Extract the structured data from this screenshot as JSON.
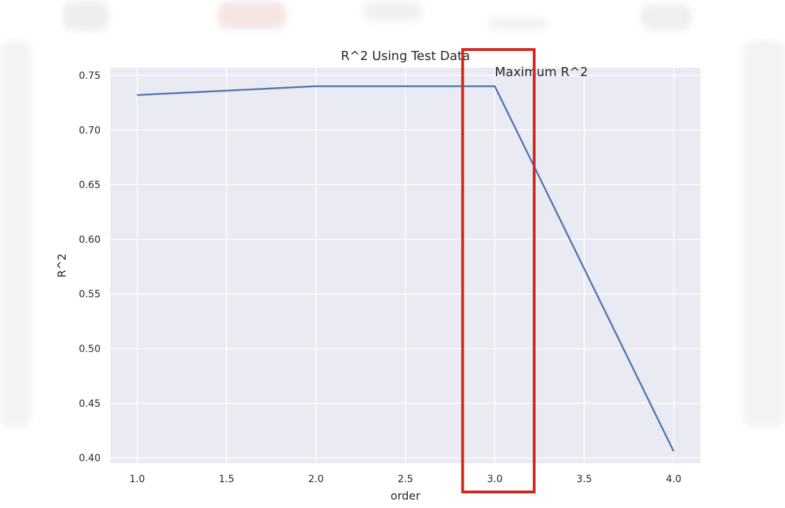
{
  "chart_data": {
    "type": "line",
    "title": "R^2 Using Test Data",
    "xlabel": "order",
    "ylabel": "R^2",
    "x": [
      1.0,
      2.0,
      3.0,
      4.0
    ],
    "series": [
      {
        "values": [
          0.732,
          0.74,
          0.74,
          0.406
        ],
        "color": "#4c72b0"
      }
    ],
    "xlim": [
      0.85,
      4.15
    ],
    "ylim": [
      0.395,
      0.757
    ],
    "xticks": [
      "1.0",
      "1.5",
      "2.0",
      "2.5",
      "3.0",
      "3.5",
      "4.0"
    ],
    "yticks": [
      "0.40",
      "0.45",
      "0.50",
      "0.55",
      "0.60",
      "0.65",
      "0.70",
      "0.75"
    ],
    "grid": true,
    "annotations": [
      {
        "text": "Maximum R^2",
        "x": 3.0,
        "y": 0.757
      }
    ],
    "highlight": {
      "x_range": [
        2.82,
        3.22
      ],
      "color": "#d0271d"
    }
  },
  "colors": {
    "plot_background": "#eaeaf2",
    "grid": "#ffffff",
    "line": "#4c72b0",
    "highlight_box": "#d0271d"
  }
}
